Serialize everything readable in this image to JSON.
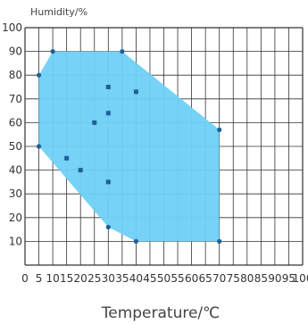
{
  "chart_data": {
    "type": "scatter",
    "title": "",
    "xlabel": "Temperature/℃",
    "ylabel": "Humidity/%",
    "xlim": [
      0,
      100
    ],
    "ylim": [
      0,
      100
    ],
    "x_ticks": [
      0,
      5,
      10,
      15,
      20,
      25,
      30,
      35,
      40,
      45,
      50,
      55,
      60,
      65,
      70,
      75,
      80,
      85,
      90,
      95,
      100
    ],
    "y_ticks": [
      10,
      20,
      30,
      40,
      50,
      60,
      70,
      80,
      90,
      100
    ],
    "grid": true,
    "region": {
      "color": "#6fd0f5",
      "vertices": [
        [
          10,
          90
        ],
        [
          35,
          90
        ],
        [
          70,
          57
        ],
        [
          70,
          10
        ],
        [
          40,
          10
        ],
        [
          30,
          16
        ],
        [
          5,
          50
        ],
        [
          5,
          80
        ]
      ]
    },
    "points": [
      [
        10,
        90
      ],
      [
        35,
        90
      ],
      [
        70,
        57
      ],
      [
        70,
        10
      ],
      [
        40,
        10
      ],
      [
        30,
        16
      ],
      [
        5,
        50
      ],
      [
        5,
        80
      ],
      [
        30,
        75
      ],
      [
        40,
        73
      ],
      [
        30,
        64
      ],
      [
        25,
        60
      ],
      [
        15,
        45
      ],
      [
        20,
        40
      ],
      [
        30,
        35
      ]
    ],
    "point_color": "#1f5f99"
  }
}
